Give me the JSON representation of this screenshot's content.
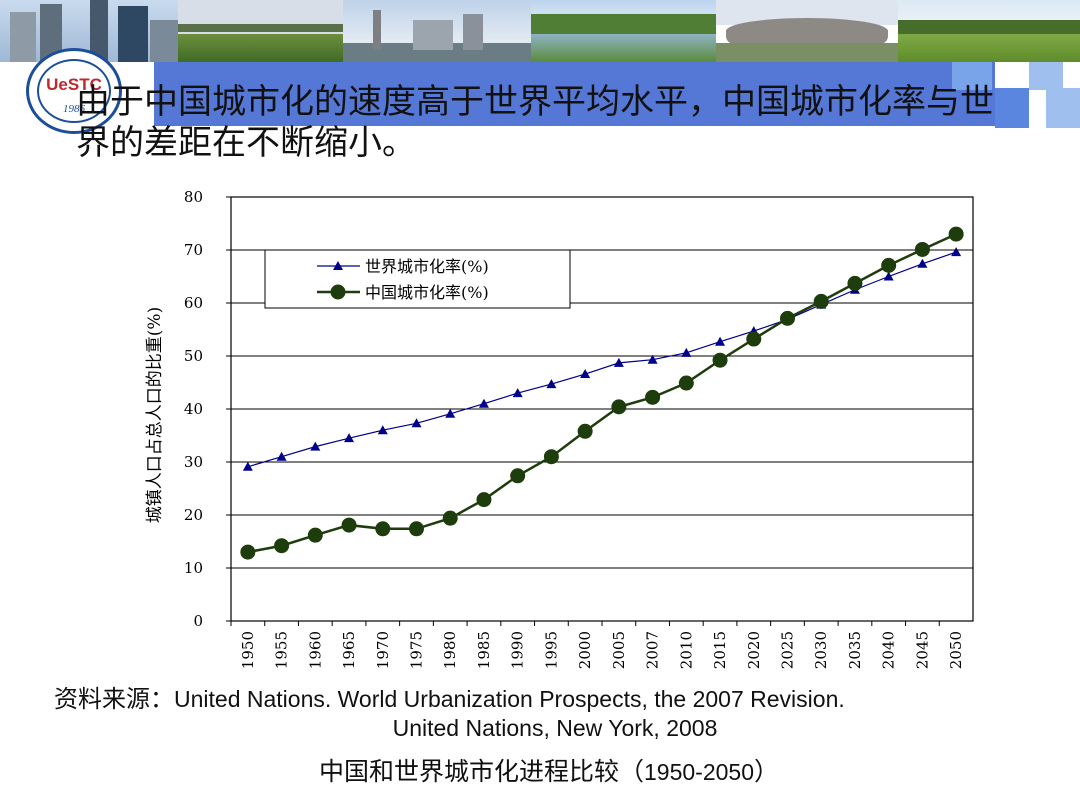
{
  "slide": {
    "logo_text": "UeSTC",
    "logo_year": "1986",
    "title": "由于中国城市化的速度高于世界平均水平，中国城市化率与世界的差距在不断缩小。",
    "source_label": "资料来源：",
    "source_line1": "United Nations. World Urbanization Prospects, the 2007 Revision.",
    "source_line2": "United Nations, New York, 2008",
    "caption_cn": "中国和世界城市化进程比较（",
    "caption_years": "1950-2050",
    "caption_end": "）"
  },
  "colors": {
    "banner_blue": "#5577d6",
    "world_series": "#00008b",
    "china_series": "#1e3d0c"
  },
  "chart_data": {
    "type": "line",
    "title": "",
    "xlabel": "",
    "ylabel": "城镇人口占总人口的比重(%)",
    "ylim": [
      0,
      80
    ],
    "yticks": [
      0,
      10,
      20,
      30,
      40,
      50,
      60,
      70,
      80
    ],
    "grid": "horizontal",
    "legend_position": "upper-left",
    "categories": [
      "1950",
      "1955",
      "1960",
      "1965",
      "1970",
      "1975",
      "1980",
      "1985",
      "1990",
      "1995",
      "2000",
      "2005",
      "2007",
      "2010",
      "2015",
      "2020",
      "2025",
      "2030",
      "2035",
      "2040",
      "2045",
      "2050"
    ],
    "series": [
      {
        "name": "世界城市化率(%)",
        "marker": "triangle",
        "values": [
          29.1,
          31.0,
          32.9,
          34.5,
          36.0,
          37.3,
          39.1,
          41.0,
          43.0,
          44.7,
          46.6,
          48.7,
          49.3,
          50.6,
          52.7,
          54.7,
          56.9,
          59.7,
          62.5,
          65.0,
          67.4,
          69.6
        ]
      },
      {
        "name": "中国城市化率(%)",
        "marker": "circle",
        "values": [
          13.0,
          14.2,
          16.2,
          18.1,
          17.4,
          17.4,
          19.4,
          22.9,
          27.4,
          31.0,
          35.8,
          40.4,
          42.2,
          44.9,
          49.2,
          53.2,
          57.1,
          60.3,
          63.7,
          67.1,
          70.1,
          73.0
        ]
      }
    ]
  }
}
